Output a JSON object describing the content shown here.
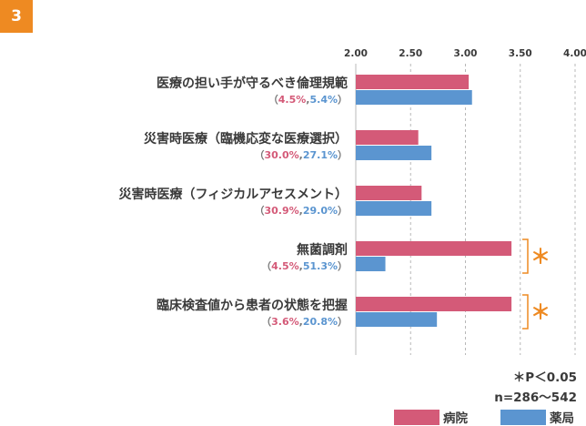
{
  "figure_number": "3",
  "colors": {
    "hospital": "#d45a78",
    "pharmacy": "#5b95d0",
    "accent": "#ee8a22",
    "grid": "#b8b8b8"
  },
  "categories": [
    {
      "label": "医療の担い手が守るべき倫理規範",
      "open": "（",
      "p1": "4.5%",
      "sep": ",",
      "p2": "5.4%",
      "close": "）"
    },
    {
      "label": "災害時医療（臨機応変な医療選択）",
      "open": "（",
      "p1": "30.0%",
      "sep": ",",
      "p2": "27.1%",
      "close": "）"
    },
    {
      "label": "災害時医療（フィジカルアセスメント）",
      "open": "（",
      "p1": "30.9%",
      "sep": ",",
      "p2": "29.0%",
      "close": "）"
    },
    {
      "label": "無菌調剤",
      "open": "（",
      "p1": "4.5%",
      "sep": ",",
      "p2": "51.3%",
      "close": "）"
    },
    {
      "label": "臨床検査値から患者の状態を把握",
      "open": "（",
      "p1": "3.6%",
      "sep": ",",
      "p2": "20.8%",
      "close": "）"
    }
  ],
  "footnotes": {
    "significance": "＊P＜0.05",
    "sample": "n=286～542"
  },
  "legend": {
    "hospital": "病院",
    "pharmacy": "薬局"
  },
  "chart_data": {
    "type": "bar",
    "orientation": "horizontal",
    "categories": [
      "医療の担い手が守るべき倫理規範",
      "災害時医療（臨機応変な医療選択）",
      "災害時医療（フィジカルアセスメント）",
      "無菌調剤",
      "臨床検査値から患者の状態を把握"
    ],
    "series": [
      {
        "name": "病院",
        "color": "#d45a78",
        "values": [
          3.03,
          2.57,
          2.6,
          3.42,
          3.42
        ]
      },
      {
        "name": "薬局",
        "color": "#5b95d0",
        "values": [
          3.06,
          2.69,
          2.69,
          2.27,
          2.74
        ]
      }
    ],
    "xlim": [
      2.0,
      4.0
    ],
    "ticks": [
      "2.00",
      "2.50",
      "3.00",
      "3.50",
      "4.00"
    ],
    "significant": [
      false,
      false,
      false,
      true,
      true
    ],
    "significance_marker": "＊",
    "grid": "dashed-vertical",
    "legend": "bottom-right"
  }
}
